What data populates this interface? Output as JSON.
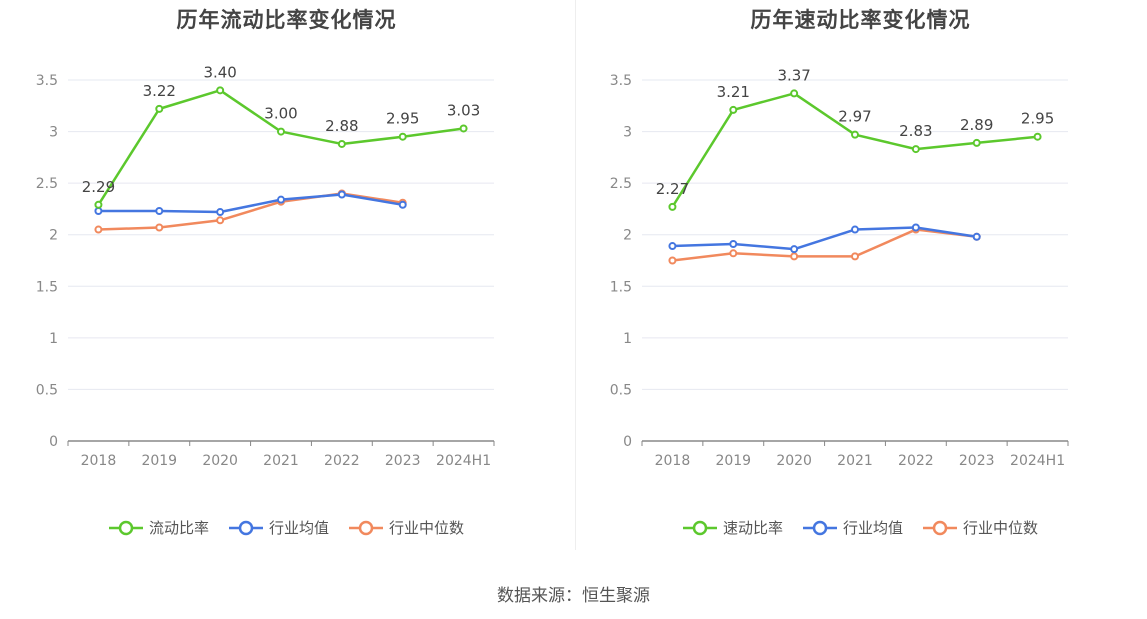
{
  "source_text": "数据来源：恒生聚源",
  "chart_data": [
    {
      "type": "line",
      "title": "历年流动比率变化情况",
      "categories": [
        "2018",
        "2019",
        "2020",
        "2021",
        "2022",
        "2023",
        "2024H1"
      ],
      "ylim": [
        0,
        3.5
      ],
      "yticks": [
        "0",
        "0.5",
        "1",
        "1.5",
        "2",
        "2.5",
        "3",
        "3.5"
      ],
      "grid": true,
      "legend_position": "bottom",
      "series": [
        {
          "name": "流动比率",
          "color": "#5cc82d",
          "values": [
            2.29,
            3.22,
            3.4,
            3.0,
            2.88,
            2.95,
            3.03
          ],
          "labels": [
            "2.29",
            "3.22",
            "3.40",
            "3.00",
            "2.88",
            "2.95",
            "3.03"
          ]
        },
        {
          "name": "行业均值",
          "color": "#4476e0",
          "values": [
            2.23,
            2.23,
            2.22,
            2.34,
            2.39,
            2.29,
            null
          ]
        },
        {
          "name": "行业中位数",
          "color": "#f1895d",
          "values": [
            2.05,
            2.07,
            2.14,
            2.32,
            2.4,
            2.31,
            null
          ]
        }
      ]
    },
    {
      "type": "line",
      "title": "历年速动比率变化情况",
      "categories": [
        "2018",
        "2019",
        "2020",
        "2021",
        "2022",
        "2023",
        "2024H1"
      ],
      "ylim": [
        0,
        3.5
      ],
      "yticks": [
        "0",
        "0.5",
        "1",
        "1.5",
        "2",
        "2.5",
        "3",
        "3.5"
      ],
      "grid": true,
      "legend_position": "bottom",
      "series": [
        {
          "name": "速动比率",
          "color": "#5cc82d",
          "values": [
            2.27,
            3.21,
            3.37,
            2.97,
            2.83,
            2.89,
            2.95
          ],
          "labels": [
            "2.27",
            "3.21",
            "3.37",
            "2.97",
            "2.83",
            "2.89",
            "2.95"
          ]
        },
        {
          "name": "行业均值",
          "color": "#4476e0",
          "values": [
            1.89,
            1.91,
            1.86,
            2.05,
            2.07,
            1.98,
            null
          ]
        },
        {
          "name": "行业中位数",
          "color": "#f1895d",
          "values": [
            1.75,
            1.82,
            1.79,
            1.79,
            2.05,
            1.98,
            null
          ]
        }
      ]
    }
  ]
}
